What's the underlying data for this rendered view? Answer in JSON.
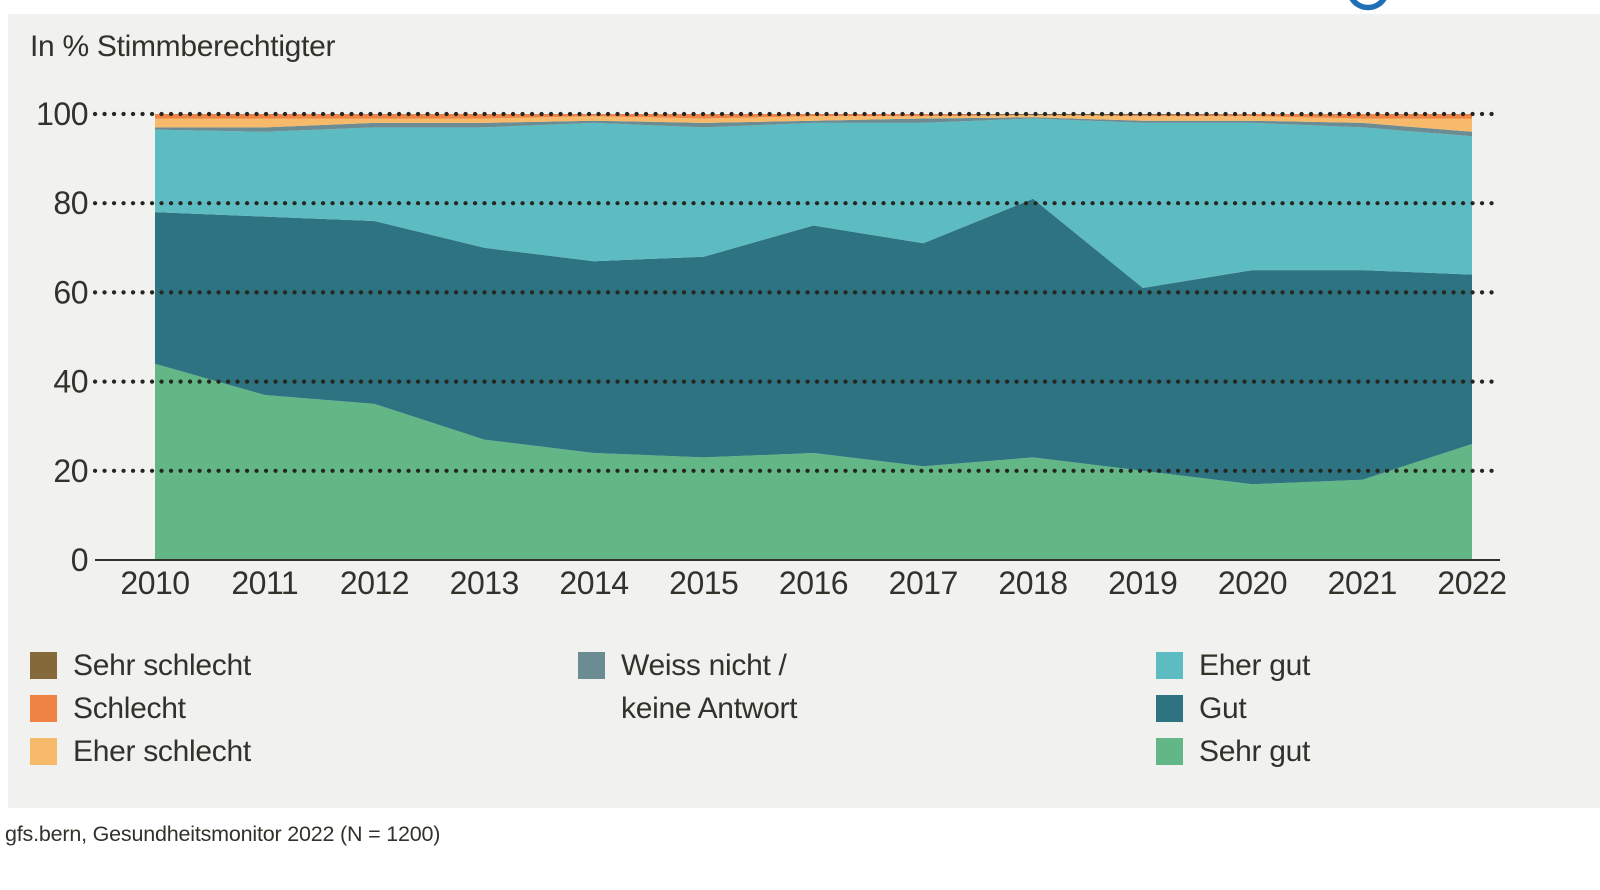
{
  "header": {
    "title": "In % Stimmberechtigter"
  },
  "logo": {
    "name": "partial-blue-circle-logo",
    "color": "#1e6fb8"
  },
  "chart_data": {
    "type": "area",
    "stacked": true,
    "title": "In % Stimmberechtigter",
    "x": [
      2010,
      2011,
      2012,
      2013,
      2014,
      2015,
      2016,
      2017,
      2018,
      2019,
      2020,
      2021,
      2022
    ],
    "series": [
      {
        "name": "Sehr gut",
        "color": "#63b786",
        "values": [
          44,
          37,
          35,
          27,
          24,
          23,
          24,
          21,
          23,
          20,
          17,
          18,
          26
        ]
      },
      {
        "name": "Gut",
        "color": "#2e7381",
        "values": [
          34,
          40,
          41,
          43,
          43,
          45,
          51,
          50,
          58,
          41,
          48,
          47,
          38
        ]
      },
      {
        "name": "Eher gut",
        "color": "#5dbcc1",
        "values": [
          18.5,
          19,
          21,
          27,
          31,
          29,
          23,
          27,
          18,
          37,
          33,
          32,
          31
        ]
      },
      {
        "name": "Weiss nicht / keine Antwort",
        "color": "#6c8c94",
        "values": [
          0.5,
          1,
          1,
          1,
          0.5,
          1,
          0.5,
          1,
          0.25,
          0.5,
          0.5,
          1,
          1
        ]
      },
      {
        "name": "Eher schlecht",
        "color": "#f7ba6b",
        "values": [
          2,
          2,
          1,
          1,
          1,
          1,
          1,
          0.5,
          0.5,
          1,
          1,
          1,
          3
        ]
      },
      {
        "name": "Schlecht",
        "color": "#ee8345",
        "values": [
          1,
          1,
          1,
          1,
          0.5,
          1,
          0.5,
          0.5,
          0,
          0.25,
          0.5,
          1,
          1
        ]
      },
      {
        "name": "Sehr schlecht",
        "color": "#85693a",
        "values": [
          0,
          0,
          0,
          0,
          0,
          0,
          0,
          0,
          0.25,
          0.25,
          0,
          0,
          0
        ]
      }
    ],
    "ylim": [
      0,
      100
    ],
    "yticks": [
      0,
      20,
      40,
      60,
      80,
      100
    ],
    "grid": "horizontal dotted black lines at each y tick, drawn above the areas",
    "legend_position": "below, three columns",
    "axis_color": "#32322b",
    "grid_dot_color": "#262621",
    "panel_background": "#f1f1ef"
  },
  "legend": {
    "columns": [
      {
        "items": [
          {
            "label": "Sehr schlecht",
            "color": "#85693a"
          },
          {
            "label": "Schlecht",
            "color": "#ee8345"
          },
          {
            "label": "Eher schlecht",
            "color": "#f7ba6b"
          }
        ]
      },
      {
        "items": [
          {
            "label_line1": "Weiss nicht /",
            "label_line2": "keine Antwort",
            "color": "#6c8c94"
          }
        ]
      },
      {
        "items": [
          {
            "label": "Eher gut",
            "color": "#5dbcc1"
          },
          {
            "label": "Gut",
            "color": "#2e7381"
          },
          {
            "label": "Sehr gut",
            "color": "#63b786"
          }
        ]
      }
    ]
  },
  "source": "gfs.bern, Gesundheitsmonitor 2022 (N = 1200)"
}
